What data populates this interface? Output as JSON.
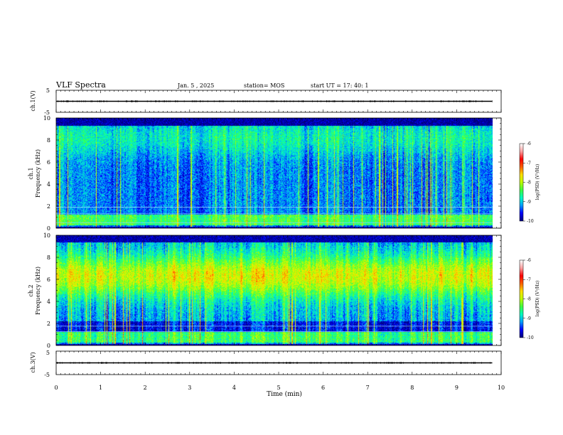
{
  "header": {
    "title": "VLF Spectra",
    "date": "Jan. 5 , 2025",
    "station": "station= MOS",
    "start_time": "start UT = 17: 40: 1"
  },
  "chart_data": [
    {
      "type": "line",
      "name": "ch1-waveform",
      "ylabel": "ch.1(V)",
      "ylim": [
        -5,
        5
      ],
      "y_ticks": [
        "5",
        "-5"
      ],
      "value": 0
    },
    {
      "type": "heatmap",
      "name": "ch1-spectrogram",
      "ylabel": "ch.1\nFrequency (kHz)",
      "ylim": [
        0,
        10
      ],
      "y_ticks": [
        "0",
        "2",
        "4",
        "6",
        "8",
        "10"
      ],
      "horizontal_lines_khz": [
        1.9,
        1.3,
        0.5
      ],
      "data_end_min": 9.8,
      "colorbar": {
        "label": "log(PSD) (V²/Hz)",
        "range": [
          -10,
          -6
        ],
        "ticks": [
          "-6",
          "-7",
          "-8",
          "-9",
          "-10"
        ]
      }
    },
    {
      "type": "heatmap",
      "name": "ch2-spectrogram",
      "ylabel": "ch.2\nFrequency (kHz)",
      "ylim": [
        0,
        10
      ],
      "y_ticks": [
        "0",
        "2",
        "4",
        "6",
        "8",
        "10"
      ],
      "horizontal_lines_khz": [
        1.75,
        1.25
      ],
      "data_end_min": 9.8,
      "colorbar": {
        "label": "log(PSD) (V²/Hz)",
        "range": [
          -10,
          -6
        ],
        "ticks": [
          "-6",
          "-7",
          "-8",
          "-9",
          "-10"
        ]
      }
    },
    {
      "type": "line",
      "name": "ch3-waveform",
      "ylabel": "ch.3(V)",
      "ylim": [
        -5,
        5
      ],
      "y_ticks": [
        "5",
        "-5"
      ],
      "value": 0
    }
  ],
  "x_axis": {
    "label": "Time (min)",
    "xlim": [
      0,
      10
    ],
    "ticks": [
      "0",
      "1",
      "2",
      "3",
      "4",
      "5",
      "6",
      "7",
      "8",
      "9",
      "10"
    ]
  },
  "colors": {
    "colormap": [
      "#00007f",
      "#0000ff",
      "#00a0ff",
      "#00ffc0",
      "#40ff40",
      "#c0ff00",
      "#ffe000",
      "#ff6000",
      "#ff0000",
      "#ffa0a0",
      "#ffffff"
    ]
  }
}
